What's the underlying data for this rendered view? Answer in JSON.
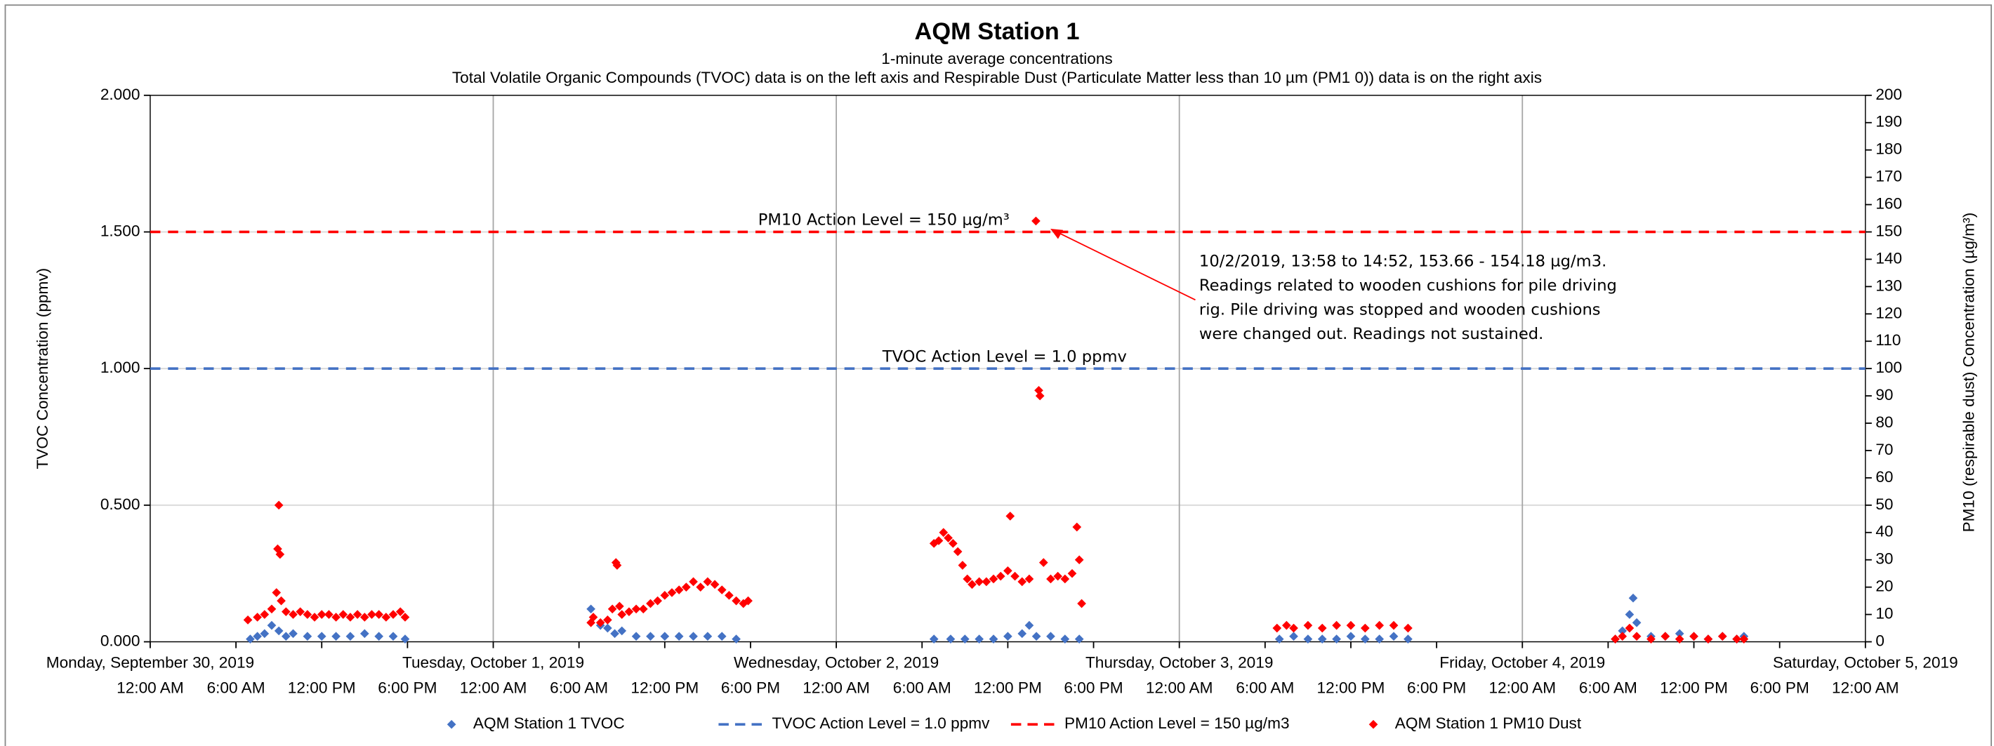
{
  "chart_data": {
    "type": "scatter",
    "title": "AQM Station 1",
    "subtitle": "1-minute average concentrations",
    "subtitle2": "Total Volatile Organic Compounds (TVOC) data is on the left axis and Respirable Dust (Particulate Matter less than 10 µm (PM1 0)) data is on the right axis",
    "y_label": "TVOC Concentration (ppmv)",
    "y2_label": "PM10 (respirable dust) Concentration (µg/m³)",
    "xlim": [
      "2019-09-30 00:00",
      "2019-10-05 00:00"
    ],
    "xticks": [
      {
        "value": "2019-09-30 00:00",
        "label": "Monday, September 30, 2019"
      },
      {
        "value": "2019-10-01 00:00",
        "label": "Tuesday, October 1, 2019"
      },
      {
        "value": "2019-10-02 00:00",
        "label": "Wednesday, October 2, 2019"
      },
      {
        "value": "2019-10-03 00:00",
        "label": "Thursday, October 3, 2019"
      },
      {
        "value": "2019-10-04 00:00",
        "label": "Friday, October 4, 2019"
      },
      {
        "value": "2019-10-05 00:00",
        "label": "Saturday, October 5, 2019"
      }
    ],
    "xticks_minor": [
      {
        "value": "2019-09-30 00:00",
        "label": "12:00 AM"
      },
      {
        "value": "2019-09-30 06:00",
        "label": "6:00 AM"
      },
      {
        "value": "2019-09-30 12:00",
        "label": "12:00 PM"
      },
      {
        "value": "2019-09-30 18:00",
        "label": "6:00 PM"
      },
      {
        "value": "2019-10-01 00:00",
        "label": "12:00 AM"
      },
      {
        "value": "2019-10-01 06:00",
        "label": "6:00 AM"
      },
      {
        "value": "2019-10-01 12:00",
        "label": "12:00 PM"
      },
      {
        "value": "2019-10-01 18:00",
        "label": "6:00 PM"
      },
      {
        "value": "2019-10-02 00:00",
        "label": "12:00 AM"
      },
      {
        "value": "2019-10-02 06:00",
        "label": "6:00 AM"
      },
      {
        "value": "2019-10-02 12:00",
        "label": "12:00 PM"
      },
      {
        "value": "2019-10-02 18:00",
        "label": "6:00 PM"
      },
      {
        "value": "2019-10-03 00:00",
        "label": "12:00 AM"
      },
      {
        "value": "2019-10-03 06:00",
        "label": "6:00 AM"
      },
      {
        "value": "2019-10-03 12:00",
        "label": "12:00 PM"
      },
      {
        "value": "2019-10-03 18:00",
        "label": "6:00 PM"
      },
      {
        "value": "2019-10-04 00:00",
        "label": "12:00 AM"
      },
      {
        "value": "2019-10-04 06:00",
        "label": "6:00 AM"
      },
      {
        "value": "2019-10-04 12:00",
        "label": "12:00 PM"
      },
      {
        "value": "2019-10-04 18:00",
        "label": "6:00 PM"
      },
      {
        "value": "2019-10-05 00:00",
        "label": "12:00 AM"
      }
    ],
    "ylim": [
      0,
      2
    ],
    "yticks": [
      {
        "value": 0,
        "label": "0.000"
      },
      {
        "value": 0.5,
        "label": "0.500"
      },
      {
        "value": 1,
        "label": "1.000"
      },
      {
        "value": 1.5,
        "label": "1.500"
      },
      {
        "value": 2,
        "label": "2.000"
      }
    ],
    "y2lim": [
      0,
      200
    ],
    "y2ticks": [
      0,
      10,
      20,
      30,
      40,
      50,
      60,
      70,
      80,
      90,
      100,
      110,
      120,
      130,
      140,
      150,
      160,
      170,
      180,
      190,
      200
    ],
    "grid": true,
    "legend": "bottom",
    "reference_lines": [
      {
        "name": "TVOC Action Level = 1.0 ppmv",
        "label": "TVOC Action Level = 1.0 ppmv",
        "value": 1.0,
        "color": "#4472c4"
      },
      {
        "name": "PM10 Action Level = 150 µg/m3",
        "label": "PM10 Action Level = 150 µg/m³",
        "value": 150,
        "axis": "y2",
        "color": "#ff0000"
      }
    ],
    "annotation": [
      "10/2/2019, 13:58 to 14:52, 153.66 - 154.18 µg/m3.",
      "Readings related to wooden cushions for pile driving",
      "rig. Pile driving was stopped and wooden cushions",
      "were changed out. Readings not sustained."
    ],
    "series": [
      {
        "name": "AQM Station 1 TVOC",
        "color": "#4472c4",
        "x": [
          "2019-09-30 07:00",
          "2019-09-30 07:30",
          "2019-09-30 08:00",
          "2019-09-30 08:30",
          "2019-09-30 09:00",
          "2019-09-30 09:30",
          "2019-09-30 10:00",
          "2019-09-30 11:00",
          "2019-09-30 12:00",
          "2019-09-30 13:00",
          "2019-09-30 14:00",
          "2019-09-30 15:00",
          "2019-09-30 16:00",
          "2019-09-30 17:00",
          "2019-09-30 17:50",
          "2019-10-01 06:50",
          "2019-10-01 07:30",
          "2019-10-01 08:00",
          "2019-10-01 08:30",
          "2019-10-01 09:00",
          "2019-10-01 10:00",
          "2019-10-01 11:00",
          "2019-10-01 12:00",
          "2019-10-01 13:00",
          "2019-10-01 14:00",
          "2019-10-01 15:00",
          "2019-10-01 16:00",
          "2019-10-01 17:00",
          "2019-10-02 06:50",
          "2019-10-02 08:00",
          "2019-10-02 09:00",
          "2019-10-02 10:00",
          "2019-10-02 11:00",
          "2019-10-02 12:00",
          "2019-10-02 13:00",
          "2019-10-02 13:30",
          "2019-10-02 14:00",
          "2019-10-02 15:00",
          "2019-10-02 16:00",
          "2019-10-02 17:00",
          "2019-10-03 07:00",
          "2019-10-03 08:00",
          "2019-10-03 09:00",
          "2019-10-03 10:00",
          "2019-10-03 11:00",
          "2019-10-03 12:00",
          "2019-10-03 13:00",
          "2019-10-03 14:00",
          "2019-10-03 15:00",
          "2019-10-03 16:00",
          "2019-10-04 06:30",
          "2019-10-04 07:00",
          "2019-10-04 07:30",
          "2019-10-04 07:45",
          "2019-10-04 08:00",
          "2019-10-04 09:00",
          "2019-10-04 10:00",
          "2019-10-04 11:00",
          "2019-10-04 12:00",
          "2019-10-04 13:00",
          "2019-10-04 14:00",
          "2019-10-04 15:00",
          "2019-10-04 15:30"
        ],
        "values": [
          0.01,
          0.02,
          0.03,
          0.06,
          0.04,
          0.02,
          0.03,
          0.02,
          0.02,
          0.02,
          0.02,
          0.03,
          0.02,
          0.02,
          0.01,
          0.12,
          0.06,
          0.05,
          0.03,
          0.04,
          0.02,
          0.02,
          0.02,
          0.02,
          0.02,
          0.02,
          0.02,
          0.01,
          0.01,
          0.01,
          0.01,
          0.01,
          0.01,
          0.02,
          0.03,
          0.06,
          0.02,
          0.02,
          0.01,
          0.01,
          0.01,
          0.02,
          0.01,
          0.01,
          0.01,
          0.02,
          0.01,
          0.01,
          0.02,
          0.01,
          0.01,
          0.04,
          0.1,
          0.16,
          0.07,
          0.02,
          0.02,
          0.03,
          0.02,
          0.01,
          0.02,
          0.01,
          0.02
        ]
      },
      {
        "name": "AQM Station 1 PM10 Dust",
        "color": "#ff0000",
        "axis": "y2",
        "x": [
          "2019-09-30 06:50",
          "2019-09-30 07:30",
          "2019-09-30 08:00",
          "2019-09-30 08:30",
          "2019-09-30 08:50",
          "2019-09-30 08:55",
          "2019-09-30 09:00",
          "2019-09-30 09:05",
          "2019-09-30 09:10",
          "2019-09-30 09:30",
          "2019-09-30 10:00",
          "2019-09-30 10:30",
          "2019-09-30 11:00",
          "2019-09-30 11:30",
          "2019-09-30 12:00",
          "2019-09-30 12:30",
          "2019-09-30 13:00",
          "2019-09-30 13:30",
          "2019-09-30 14:00",
          "2019-09-30 14:30",
          "2019-09-30 15:00",
          "2019-09-30 15:30",
          "2019-09-30 16:00",
          "2019-09-30 16:30",
          "2019-09-30 17:00",
          "2019-09-30 17:30",
          "2019-09-30 17:50",
          "2019-10-01 06:50",
          "2019-10-01 07:00",
          "2019-10-01 07:30",
          "2019-10-01 08:00",
          "2019-10-01 08:20",
          "2019-10-01 08:35",
          "2019-10-01 08:40",
          "2019-10-01 08:50",
          "2019-10-01 09:00",
          "2019-10-01 09:30",
          "2019-10-01 10:00",
          "2019-10-01 10:30",
          "2019-10-01 11:00",
          "2019-10-01 11:30",
          "2019-10-01 12:00",
          "2019-10-01 12:30",
          "2019-10-01 13:00",
          "2019-10-01 13:30",
          "2019-10-01 14:00",
          "2019-10-01 14:30",
          "2019-10-01 15:00",
          "2019-10-01 15:30",
          "2019-10-01 16:00",
          "2019-10-01 16:30",
          "2019-10-01 17:00",
          "2019-10-01 17:30",
          "2019-10-01 17:50",
          "2019-10-02 06:50",
          "2019-10-02 07:10",
          "2019-10-02 07:30",
          "2019-10-02 07:50",
          "2019-10-02 08:10",
          "2019-10-02 08:30",
          "2019-10-02 08:50",
          "2019-10-02 09:10",
          "2019-10-02 09:30",
          "2019-10-02 10:00",
          "2019-10-02 10:30",
          "2019-10-02 11:00",
          "2019-10-02 11:30",
          "2019-10-02 12:00",
          "2019-10-02 12:10",
          "2019-10-02 12:30",
          "2019-10-02 13:00",
          "2019-10-02 13:30",
          "2019-10-02 13:58",
          "2019-10-02 14:10",
          "2019-10-02 14:15",
          "2019-10-02 14:30",
          "2019-10-02 15:00",
          "2019-10-02 15:30",
          "2019-10-02 16:00",
          "2019-10-02 16:30",
          "2019-10-02 16:50",
          "2019-10-02 17:00",
          "2019-10-02 17:10",
          "2019-10-03 06:50",
          "2019-10-03 07:30",
          "2019-10-03 08:00",
          "2019-10-03 09:00",
          "2019-10-03 10:00",
          "2019-10-03 11:00",
          "2019-10-03 12:00",
          "2019-10-03 13:00",
          "2019-10-03 14:00",
          "2019-10-03 15:00",
          "2019-10-03 16:00",
          "2019-10-04 06:30",
          "2019-10-04 07:00",
          "2019-10-04 07:30",
          "2019-10-04 08:00",
          "2019-10-04 09:00",
          "2019-10-04 10:00",
          "2019-10-04 11:00",
          "2019-10-04 12:00",
          "2019-10-04 13:00",
          "2019-10-04 14:00",
          "2019-10-04 15:00",
          "2019-10-04 15:30"
        ],
        "values": [
          8,
          9,
          10,
          12,
          18,
          34,
          50,
          32,
          15,
          11,
          10,
          11,
          10,
          9,
          10,
          10,
          9,
          10,
          9,
          10,
          9,
          10,
          10,
          9,
          10,
          11,
          9,
          7,
          9,
          7,
          8,
          12,
          29,
          28,
          13,
          10,
          11,
          12,
          12,
          14,
          15,
          17,
          18,
          19,
          20,
          22,
          20,
          22,
          21,
          19,
          17,
          15,
          14,
          15,
          36,
          37,
          40,
          38,
          36,
          33,
          28,
          23,
          21,
          22,
          22,
          23,
          24,
          26,
          46,
          24,
          22,
          23,
          154,
          92,
          90,
          29,
          23,
          24,
          23,
          25,
          42,
          30,
          14,
          5,
          6,
          5,
          6,
          5,
          6,
          6,
          5,
          6,
          6,
          5,
          1,
          2,
          5,
          2,
          1,
          2,
          1,
          2,
          1,
          2,
          1,
          1
        ]
      }
    ]
  }
}
